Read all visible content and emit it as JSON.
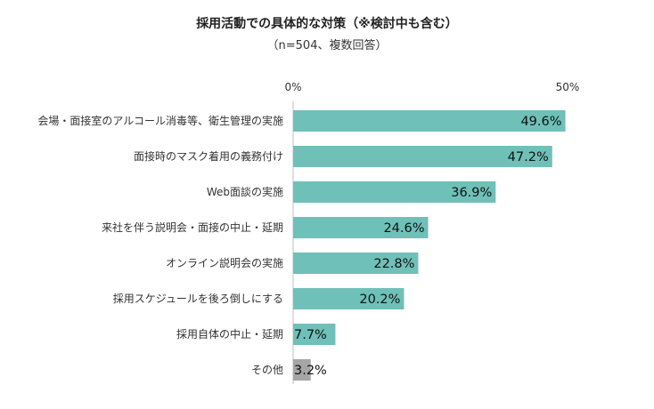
{
  "chart_data": {
    "type": "bar",
    "orientation": "horizontal",
    "title": "採用活動での具体的な対策（※検討中も含む）",
    "subtitle": "（n=504、複数回答）",
    "categories": [
      "会場・面接室のアルコール消毒等、衛生管理の実施",
      "面接時のマスク着用の義務付け",
      "Web面談の実施",
      "来社を伴う説明会・面接の中止・延期",
      "オンライン説明会の実施",
      "採用スケジュールを後ろ倒しにする",
      "採用自体の中止・延期",
      "その他"
    ],
    "values": [
      49.6,
      47.2,
      36.9,
      24.6,
      22.8,
      20.2,
      7.7,
      3.2
    ],
    "value_labels": [
      "49.6%",
      "47.2%",
      "36.9%",
      "24.6%",
      "22.8%",
      "20.2%",
      "7.7%",
      "3.2%"
    ],
    "bar_colors": [
      "#6fc0b8",
      "#6fc0b8",
      "#6fc0b8",
      "#6fc0b8",
      "#6fc0b8",
      "#6fc0b8",
      "#6fc0b8",
      "#a6a6a6"
    ],
    "xlim": [
      0,
      50
    ],
    "xticks": [
      0,
      50
    ],
    "xtick_labels": [
      "0%",
      "50%"
    ],
    "xlabel": "",
    "ylabel": "",
    "grid": false
  }
}
